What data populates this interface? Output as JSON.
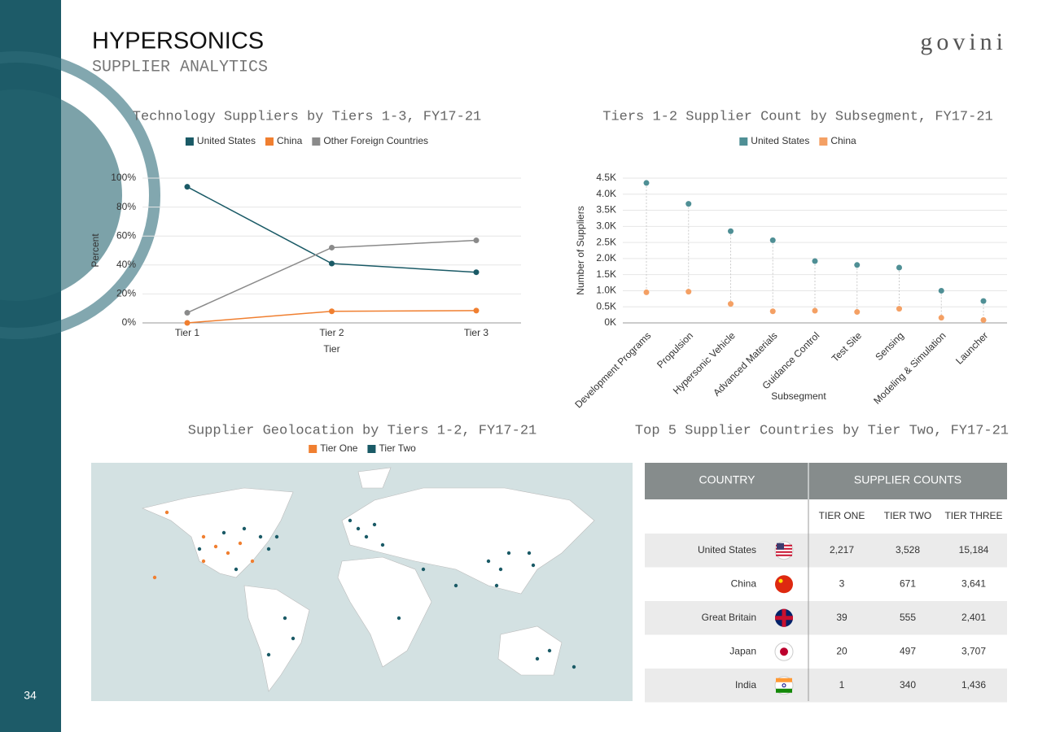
{
  "header": {
    "title": "HYPERSONICS",
    "subtitle": "SUPPLIER ANALYTICS",
    "logo": "govini",
    "page_number": "34"
  },
  "chart_data": [
    {
      "type": "line",
      "title": "Technology Suppliers by Tiers 1-3, FY17-21",
      "categories": [
        "Tier 1",
        "Tier 2",
        "Tier 3"
      ],
      "series": [
        {
          "name": "United States",
          "color": "#1a5a66",
          "values": [
            94,
            41,
            35
          ]
        },
        {
          "name": "China",
          "color": "#f07f30",
          "values": [
            0,
            8,
            8.5
          ]
        },
        {
          "name": "Other Foreign Countries",
          "color": "#8a8a8a",
          "values": [
            7,
            52,
            57
          ]
        }
      ],
      "x_label": "Tier",
      "y_label": "Percent",
      "ylim": [
        0,
        100
      ],
      "yticks": [
        {
          "value": 0,
          "label": "0%"
        },
        {
          "value": 20,
          "label": "20%"
        },
        {
          "value": 40,
          "label": "40%"
        },
        {
          "value": 60,
          "label": "60%"
        },
        {
          "value": 80,
          "label": "80%"
        },
        {
          "value": 100,
          "label": "100%"
        }
      ],
      "grid": true
    },
    {
      "type": "dot",
      "title": "Tiers 1-2 Supplier Count by Subsegment, FY17-21",
      "categories": [
        "Development Programs",
        "Propulsion",
        "Hypersonic Vehicle",
        "Advanced Materials",
        "Guidance Control",
        "Test Site",
        "Sensing",
        "Modeling & Simulation",
        "Launcher"
      ],
      "series": [
        {
          "name": "United States",
          "color": "#4f8f95",
          "values": [
            4350,
            3700,
            2850,
            2570,
            1920,
            1800,
            1720,
            1000,
            680
          ]
        },
        {
          "name": "China",
          "color": "#f4a064",
          "values": [
            950,
            970,
            590,
            360,
            380,
            340,
            440,
            160,
            90
          ]
        }
      ],
      "x_label": "Subsegment",
      "y_label": "Number of Suppliers",
      "ylim": [
        0,
        4500
      ],
      "yticks": [
        {
          "value": 0,
          "label": "0K"
        },
        {
          "value": 500,
          "label": "0.5K"
        },
        {
          "value": 1000,
          "label": "1.0K"
        },
        {
          "value": 1500,
          "label": "1.5K"
        },
        {
          "value": 2000,
          "label": "2.0K"
        },
        {
          "value": 2500,
          "label": "2.5K"
        },
        {
          "value": 3000,
          "label": "3.0K"
        },
        {
          "value": 3500,
          "label": "3.5K"
        },
        {
          "value": 4000,
          "label": "4.0K"
        },
        {
          "value": 4500,
          "label": "4.5K"
        }
      ],
      "grid": true
    }
  ],
  "map": {
    "title": "Supplier Geolocation by Tiers 1-2, FY17-21",
    "legend": [
      {
        "name": "Tier One",
        "color": "#f07f30"
      },
      {
        "name": "Tier Two",
        "color": "#1a5a66"
      }
    ]
  },
  "table": {
    "title": "Top 5 Supplier Countries by Tier Two, FY17-21",
    "header": [
      "COUNTRY",
      "SUPPLIER COUNTS"
    ],
    "subheader": [
      "TIER ONE",
      "TIER TWO",
      "TIER THREE"
    ],
    "rows": [
      [
        "United States",
        "2,217",
        "3,528",
        "15,184"
      ],
      [
        "China",
        "3",
        "671",
        "3,641"
      ],
      [
        "Great Britain",
        "39",
        "555",
        "2,401"
      ],
      [
        "Japan",
        "20",
        "497",
        "3,707"
      ],
      [
        "India",
        "1",
        "340",
        "1,436"
      ]
    ]
  }
}
